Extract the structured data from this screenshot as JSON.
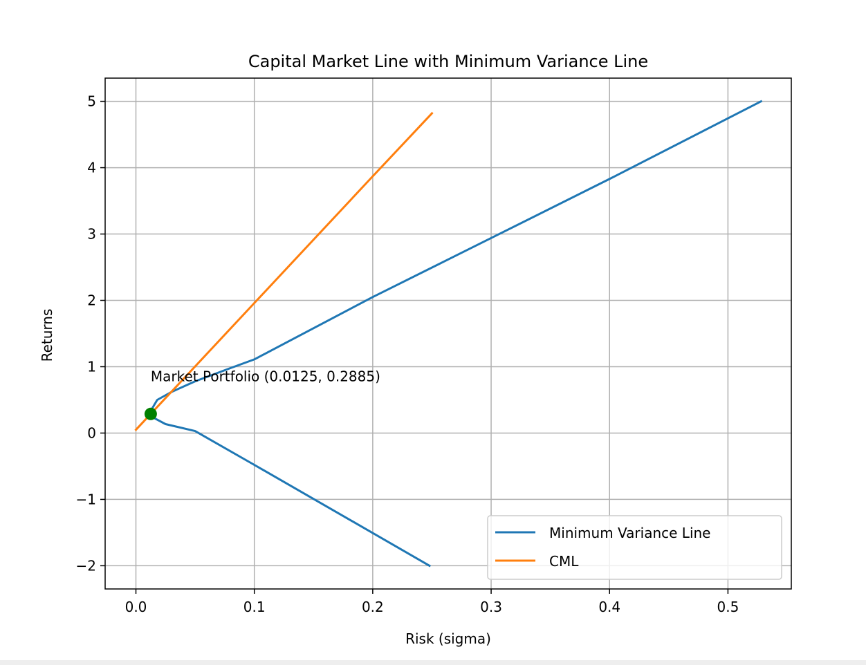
{
  "chart_data": {
    "type": "line",
    "title": "Capital Market Line with Minimum Variance Line",
    "xlabel": "Risk (sigma)",
    "ylabel": "Returns",
    "xlim": [
      -0.026,
      0.5535
    ],
    "ylim": [
      -2.35,
      5.35
    ],
    "grid": true,
    "legend_position": "lower-right",
    "xticks": [
      0.0,
      0.1,
      0.2,
      0.3,
      0.4,
      0.5
    ],
    "xtick_labels": [
      "0.0",
      "0.1",
      "0.2",
      "0.3",
      "0.4",
      "0.5"
    ],
    "yticks": [
      -2,
      -1,
      0,
      1,
      2,
      3,
      4,
      5
    ],
    "ytick_labels": [
      "−2",
      "−1",
      "0",
      "1",
      "2",
      "3",
      "4",
      "5"
    ],
    "series": [
      {
        "name": "Minimum Variance Line",
        "color": "#1f77b4",
        "x": [
          0.248,
          0.175,
          0.1,
          0.05,
          0.025,
          0.016,
          0.0125,
          0.013,
          0.018,
          0.03,
          0.05,
          0.08,
          0.1,
          0.2,
          0.3,
          0.4,
          0.528
        ],
        "y": [
          -2.0,
          -1.25,
          -0.48,
          0.03,
          0.135,
          0.22,
          0.2885,
          0.35,
          0.5,
          0.62,
          0.78,
          0.98,
          1.11,
          2.05,
          2.94,
          3.83,
          5.0
        ]
      },
      {
        "name": "CML",
        "color": "#ff7f0e",
        "x": [
          0.0,
          0.0125,
          0.1,
          0.2,
          0.25
        ],
        "y": [
          0.05,
          0.2885,
          1.96,
          3.87,
          4.82
        ]
      }
    ],
    "points": [
      {
        "x": 0.0125,
        "y": 0.2885,
        "color": "#008000"
      }
    ],
    "annotations": [
      {
        "text": "Market Portfolio (0.0125, 0.2885)",
        "x": 0.0125,
        "y": 0.78
      }
    ]
  }
}
